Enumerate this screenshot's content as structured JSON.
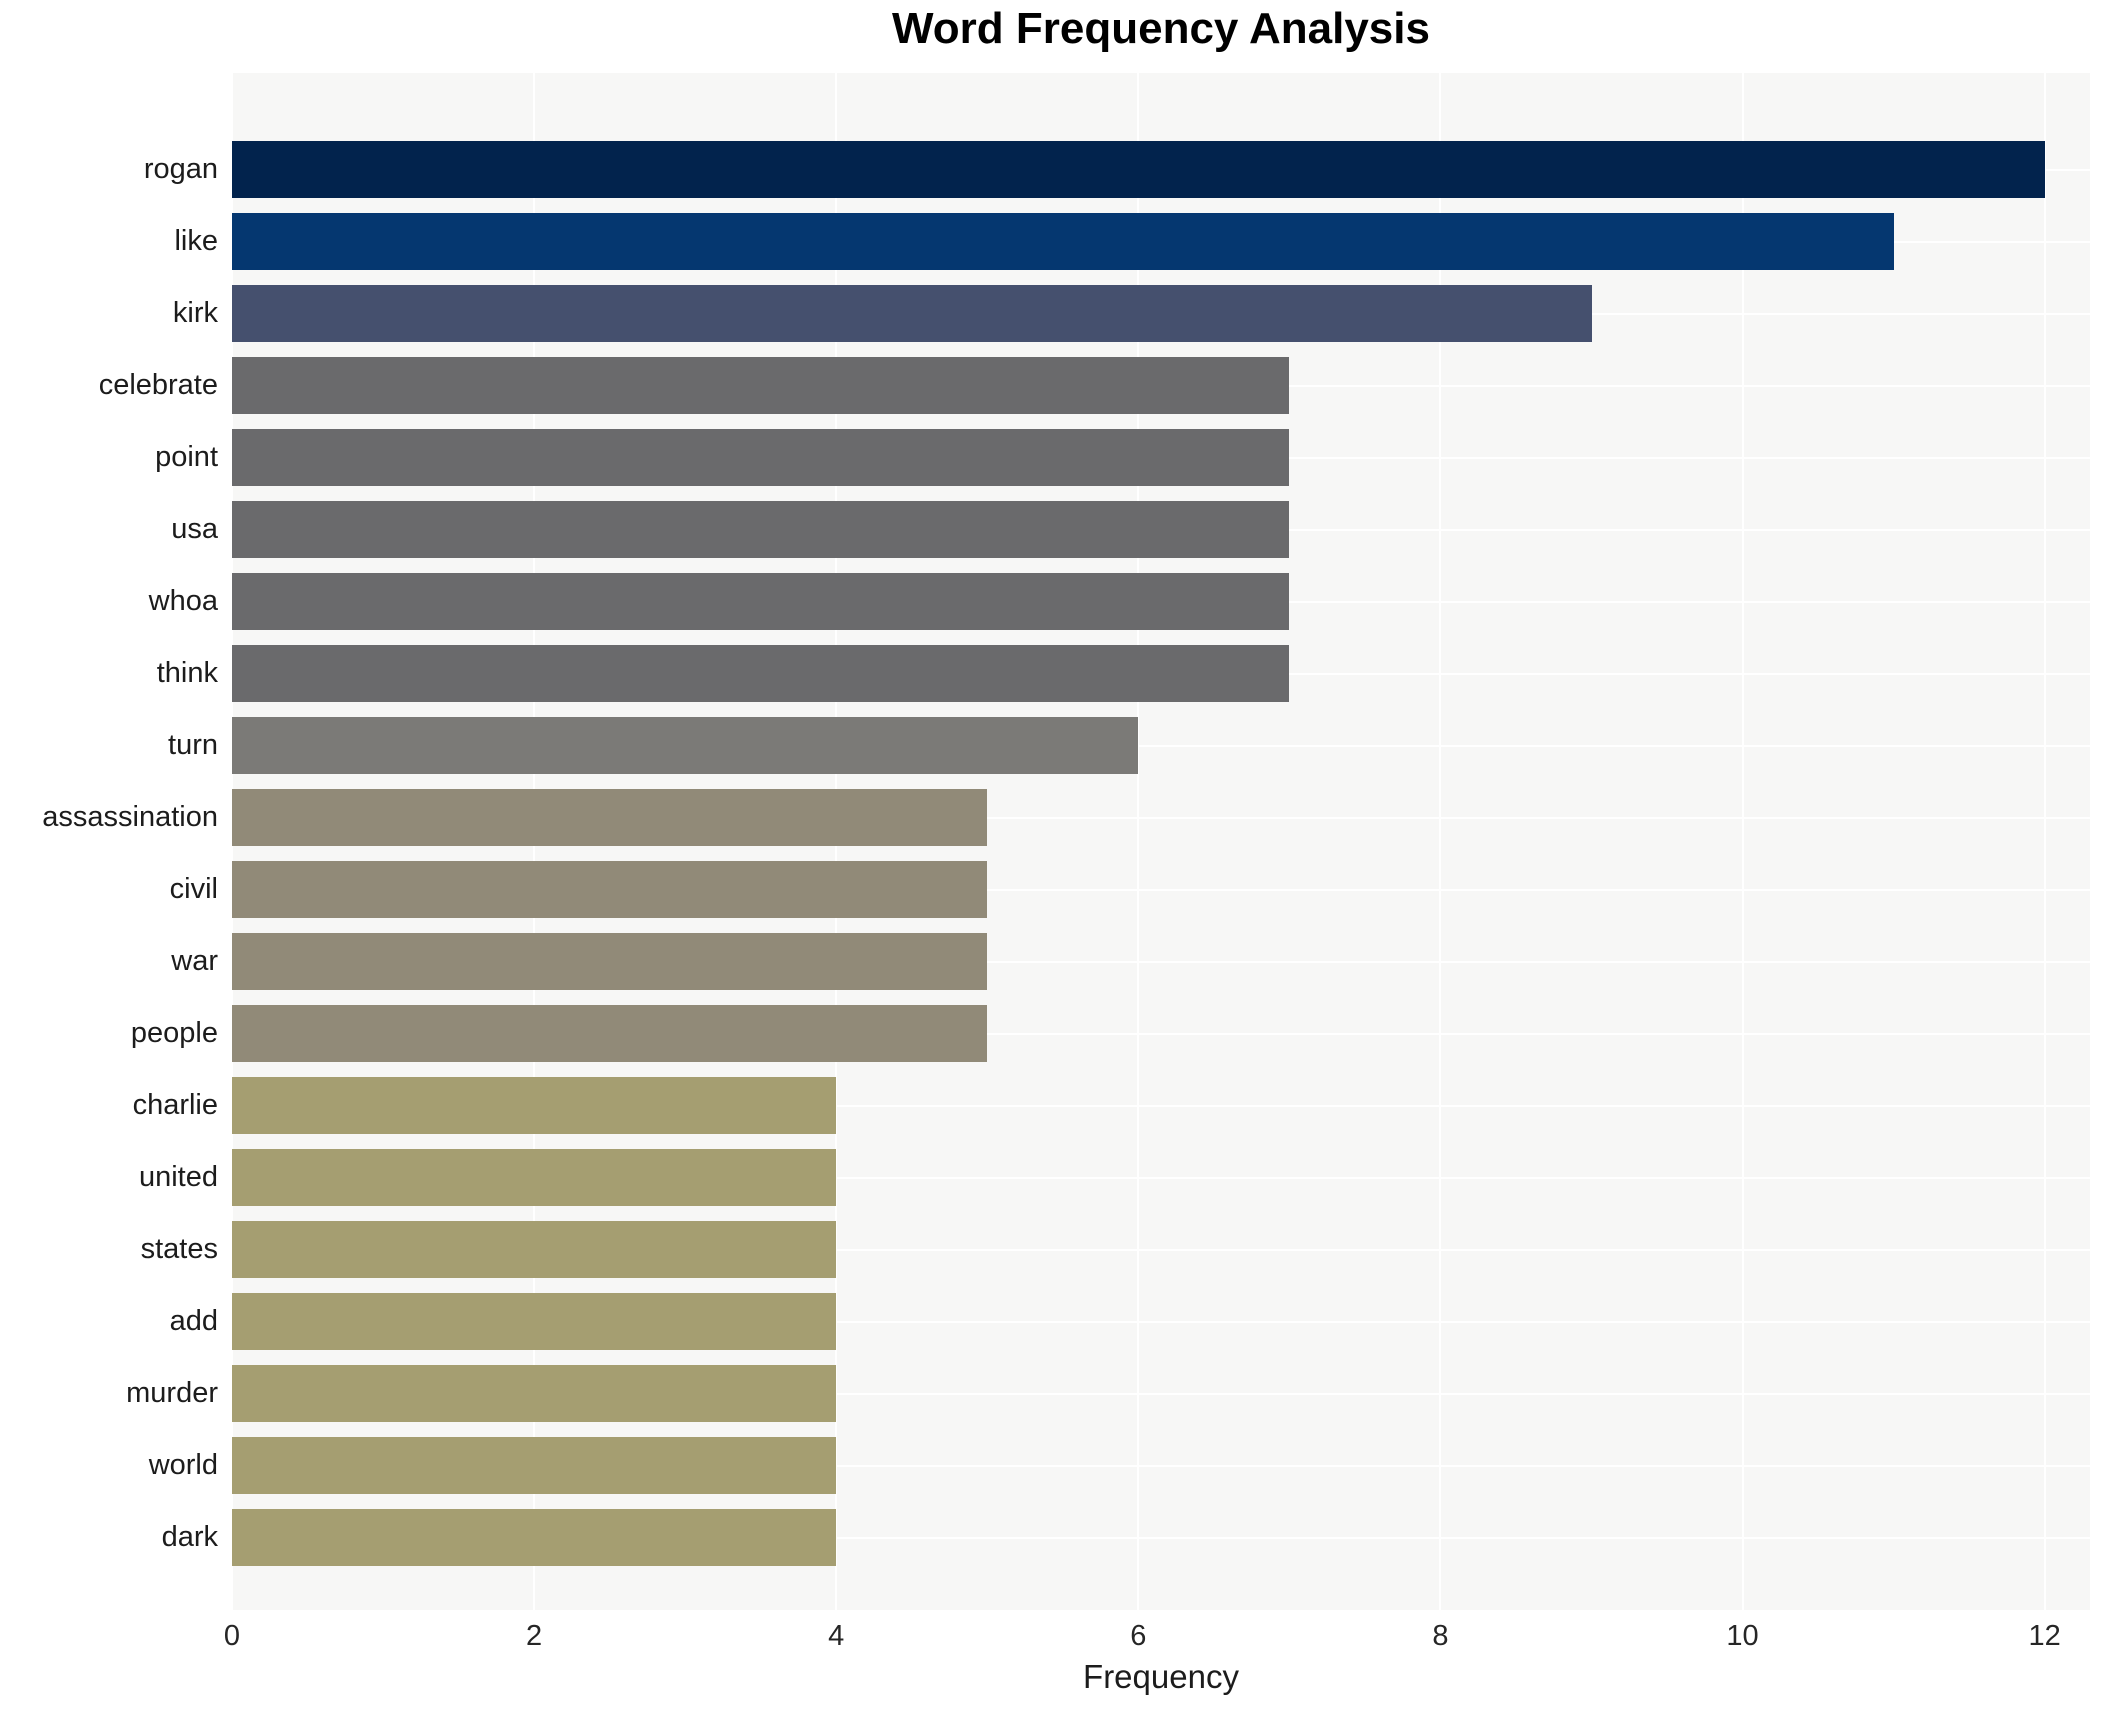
{
  "title": "Word Frequency Analysis",
  "x_axis_label": "Frequency",
  "chart_data": {
    "type": "bar",
    "orientation": "horizontal",
    "title": "Word Frequency Analysis",
    "xlabel": "Frequency",
    "ylabel": "",
    "categories": [
      "rogan",
      "like",
      "kirk",
      "celebrate",
      "point",
      "usa",
      "whoa",
      "think",
      "turn",
      "assassination",
      "civil",
      "war",
      "people",
      "charlie",
      "united",
      "states",
      "add",
      "murder",
      "world",
      "dark"
    ],
    "values": [
      12,
      11,
      9,
      7,
      7,
      7,
      7,
      7,
      6,
      5,
      5,
      5,
      5,
      4,
      4,
      4,
      4,
      4,
      4,
      4
    ],
    "bar_colors": [
      "#02234d",
      "#053770",
      "#45506e",
      "#6a6a6c",
      "#6a6a6c",
      "#6a6a6c",
      "#6a6a6c",
      "#6a6a6c",
      "#7b7a77",
      "#918a78",
      "#918a78",
      "#918a78",
      "#918a78",
      "#a59e71",
      "#a59e71",
      "#a59e71",
      "#a59e71",
      "#a59e71",
      "#a59e71",
      "#a59e71"
    ],
    "x_ticks": [
      0,
      2,
      4,
      6,
      8,
      10,
      12
    ],
    "xlim": [
      0,
      12.3
    ],
    "grid": true,
    "legend_position": "none",
    "plot_background": "#f7f7f6",
    "gridline_color": "#ffffff",
    "tick_text_color": "#262626",
    "title_color": "#000000"
  }
}
